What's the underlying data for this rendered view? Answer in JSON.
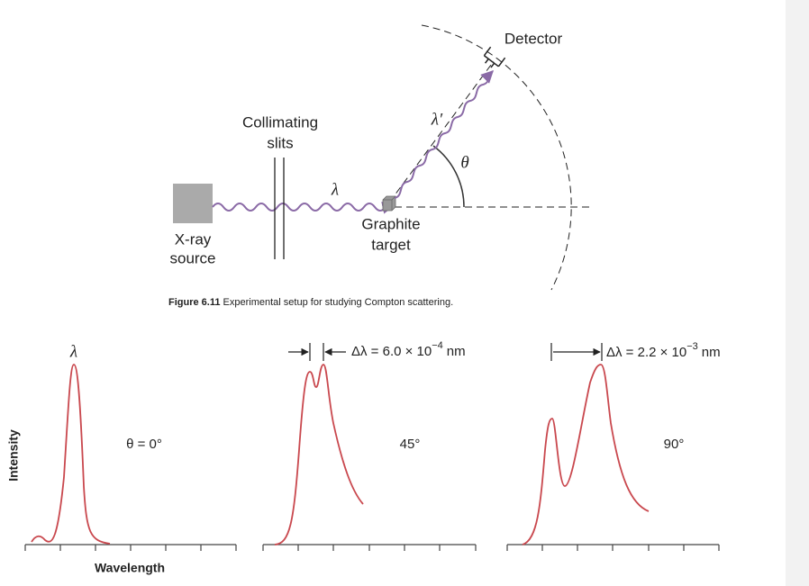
{
  "figure": {
    "detector": "Detector",
    "collimating_slits": [
      "Collimating",
      "slits"
    ],
    "incident_wavelength": "λ",
    "scattered_wavelength": "λ′",
    "angle": "θ",
    "source": [
      "X-ray",
      "source"
    ],
    "target": [
      "Graphite",
      "target"
    ],
    "caption": {
      "label": "Figure 6.11",
      "text": "Experimental setup for studying Compton scattering."
    }
  },
  "plots": {
    "y_label": "Intensity",
    "x_label": "Wavelength",
    "panels": [
      {
        "peak_label": "λ",
        "angle_label": "θ = 0°"
      },
      {
        "shift_label": {
          "base": "Δλ = 6.0 × 10",
          "exponent": "−4",
          "unit": "nm"
        },
        "angle_label": "45°"
      },
      {
        "shift_label": {
          "base": "Δλ = 2.2 × 10",
          "exponent": "−3",
          "unit": "nm"
        },
        "angle_label": "90°"
      }
    ]
  }
}
